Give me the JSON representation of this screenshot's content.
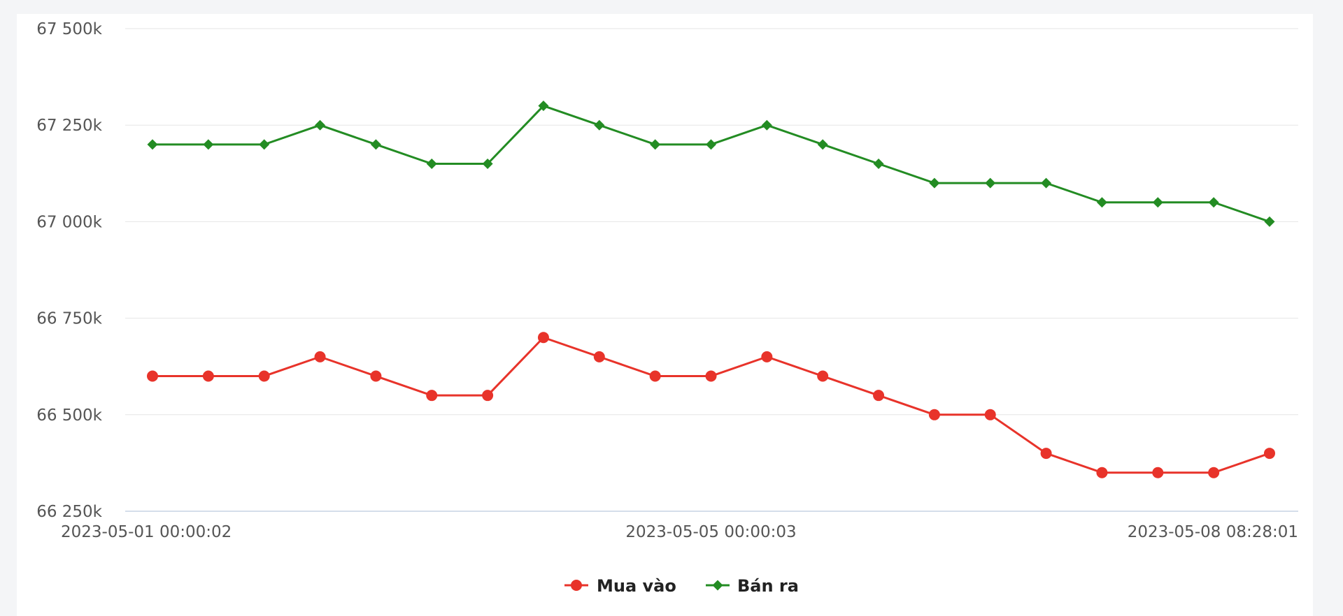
{
  "chart_data": {
    "type": "line",
    "title": "",
    "xlabel": "",
    "ylabel": "",
    "x": [
      "2023-05-01 00:00:02",
      "",
      "",
      "",
      "",
      "",
      "",
      "",
      "",
      "",
      "2023-05-05 00:00:03",
      "",
      "",
      "",
      "",
      "",
      "",
      "",
      "",
      "",
      "2023-05-08 08:28:01"
    ],
    "x_tick_labels": [
      "2023-05-01 00:00:02",
      "2023-05-05 00:00:03",
      "2023-05-08 08:28:01"
    ],
    "y_tick_values": [
      66250,
      66500,
      66750,
      67000,
      67250,
      67500
    ],
    "y_tick_labels": [
      "66 250k",
      "66 500k",
      "66 750k",
      "67 000k",
      "67 250k",
      "67 500k"
    ],
    "ylim": [
      66250,
      67500
    ],
    "grid": true,
    "legend_position": "bottom-center",
    "series": [
      {
        "name": "Mua vào",
        "color": "#e8332a",
        "marker": "circle",
        "values": [
          66600,
          66600,
          66600,
          66650,
          66600,
          66550,
          66550,
          66700,
          66650,
          66600,
          66600,
          66650,
          66600,
          66550,
          66500,
          66500,
          66400,
          66350,
          66350,
          66350,
          66400
        ]
      },
      {
        "name": "Bán ra",
        "color": "#238c23",
        "marker": "diamond",
        "values": [
          67200,
          67200,
          67200,
          67250,
          67200,
          67150,
          67150,
          67300,
          67250,
          67200,
          67200,
          67250,
          67200,
          67150,
          67100,
          67100,
          67100,
          67050,
          67050,
          67050,
          67000
        ]
      }
    ]
  }
}
